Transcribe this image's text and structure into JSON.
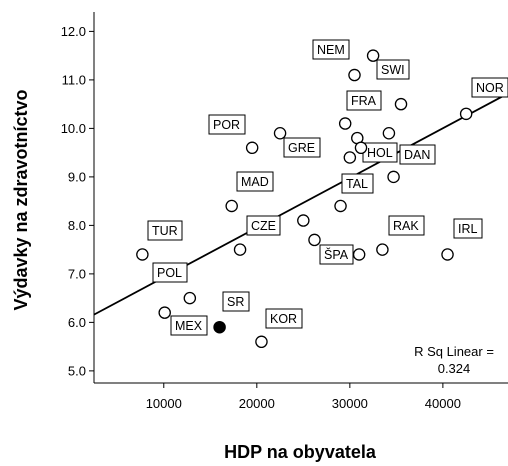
{
  "chart_data": {
    "type": "scatter",
    "xlabel": "HDP na obyvatela",
    "ylabel": "Výdavky na zdravotníctvo",
    "xlim": [
      2500,
      47000
    ],
    "ylim": [
      4.75,
      12.4
    ],
    "x_ticks": [
      10000,
      20000,
      30000,
      40000
    ],
    "y_ticks": [
      5.0,
      6.0,
      7.0,
      8.0,
      9.0,
      10.0,
      11.0,
      12.0
    ],
    "x_tick_labels": [
      "10000",
      "20000",
      "30000",
      "40000"
    ],
    "y_tick_labels": [
      "5.0",
      "6.0",
      "7.0",
      "8.0",
      "9.0",
      "10.0",
      "11.0",
      "12.0"
    ],
    "points": [
      {
        "label": "NEM",
        "x": 30500,
        "y": 11.1
      },
      {
        "label": "SWI",
        "x": 32500,
        "y": 11.5
      },
      {
        "label": "",
        "x": 35500,
        "y": 10.5
      },
      {
        "label": "NOR",
        "x": 42500,
        "y": 10.3
      },
      {
        "label": "FRA",
        "x": 29500,
        "y": 10.1
      },
      {
        "label": "POR",
        "x": 19500,
        "y": 9.6
      },
      {
        "label": "GRE",
        "x": 22500,
        "y": 9.9
      },
      {
        "label": "",
        "x": 30800,
        "y": 9.8
      },
      {
        "label": "",
        "x": 34200,
        "y": 9.9
      },
      {
        "label": "HOL",
        "x": 31200,
        "y": 9.6
      },
      {
        "label": "",
        "x": 30000,
        "y": 9.4
      },
      {
        "label": "DAN",
        "x": 34700,
        "y": 9.0
      },
      {
        "label": "MAD",
        "x": 17300,
        "y": 8.4
      },
      {
        "label": "TAL",
        "x": 29000,
        "y": 8.4
      },
      {
        "label": "",
        "x": 25000,
        "y": 8.1
      },
      {
        "label": "TUR",
        "x": 7700,
        "y": 7.4
      },
      {
        "label": "CZE",
        "x": 18200,
        "y": 7.5
      },
      {
        "label": "",
        "x": 26200,
        "y": 7.7
      },
      {
        "label": "ŠPA",
        "x": 31000,
        "y": 7.4
      },
      {
        "label": "RAK",
        "x": 33500,
        "y": 7.5
      },
      {
        "label": "IRL",
        "x": 40500,
        "y": 7.4
      },
      {
        "label": "POL",
        "x": 12800,
        "y": 6.5
      },
      {
        "label": "MEX",
        "x": 10100,
        "y": 6.2
      },
      {
        "label": "SR",
        "x": 16000,
        "y": 5.9,
        "highlight": true
      },
      {
        "label": "KOR",
        "x": 20500,
        "y": 5.6
      }
    ],
    "fit_line": {
      "x": [
        2500,
        47000
      ],
      "y": [
        6.16,
        10.72
      ]
    },
    "annotation": [
      "R Sq Linear =",
      "0.324"
    ],
    "colors": {
      "marker_edge": "#000000",
      "marker_fill": "#ffffff",
      "highlight_fill": "#000000",
      "line": "#000000"
    }
  }
}
